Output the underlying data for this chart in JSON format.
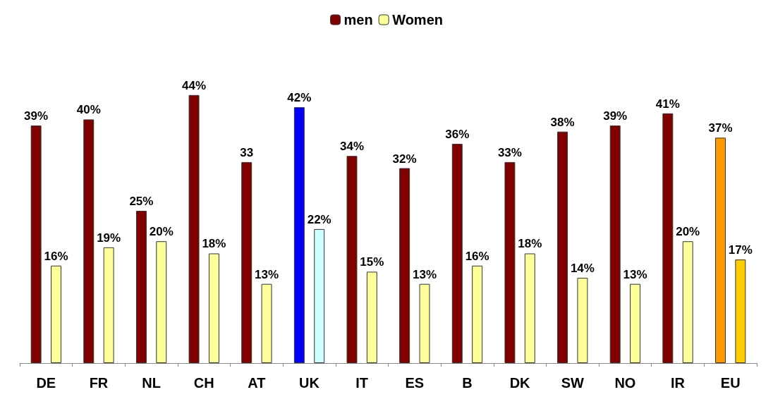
{
  "chart_data": {
    "type": "bar",
    "categories": [
      "DE",
      "FR",
      "NL",
      "CH",
      "AT",
      "UK",
      "IT",
      "ES",
      "B",
      "DK",
      "SW",
      "NO",
      "IR",
      "EU"
    ],
    "series": [
      {
        "name": "men",
        "color": "#800000",
        "colors": [
          "#800000",
          "#800000",
          "#800000",
          "#800000",
          "#800000",
          "#0000ff",
          "#800000",
          "#800000",
          "#800000",
          "#800000",
          "#800000",
          "#800000",
          "#800000",
          "#ff9900"
        ],
        "values": [
          39,
          40,
          25,
          44,
          33,
          42,
          34,
          32,
          36,
          33,
          38,
          39,
          41,
          37
        ],
        "value_labels": [
          "39%",
          "40%",
          "25%",
          "44%",
          "33",
          "42%",
          "34%",
          "32%",
          "36%",
          "33%",
          "38%",
          "39%",
          "41%",
          "37%"
        ]
      },
      {
        "name": "Women",
        "color": "#ffff99",
        "colors": [
          "#ffff99",
          "#ffff99",
          "#ffff99",
          "#ffff99",
          "#ffff99",
          "#ccffff",
          "#ffff99",
          "#ffff99",
          "#ffff99",
          "#ffff99",
          "#ffff99",
          "#ffff99",
          "#ffff99",
          "#ffcc00"
        ],
        "values": [
          16,
          19,
          20,
          18,
          13,
          22,
          15,
          13,
          16,
          18,
          14,
          13,
          20,
          17
        ],
        "value_labels": [
          "16%",
          "19%",
          "20%",
          "18%",
          "13%",
          "22%",
          "15%",
          "13%",
          "16%",
          "18%",
          "14%",
          "13%",
          "20%",
          "17%"
        ]
      }
    ],
    "legend": "top"
  }
}
